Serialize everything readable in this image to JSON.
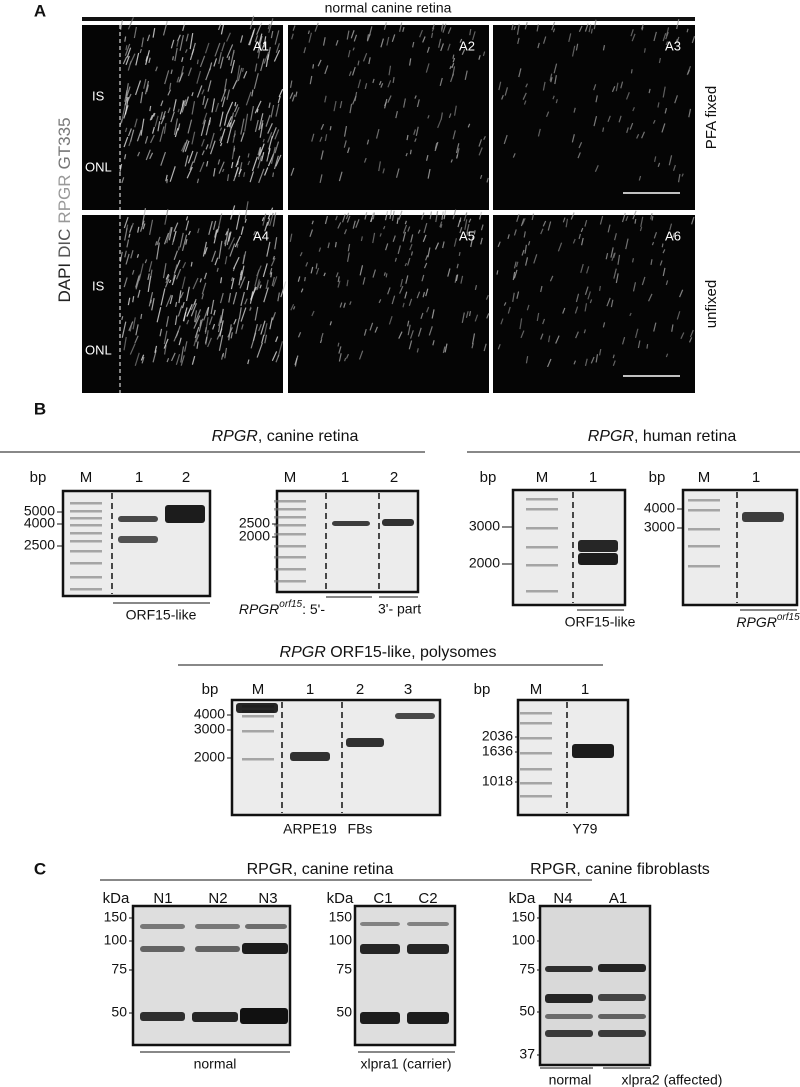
{
  "panel_a": {
    "label": "A",
    "title": "normal canine retina",
    "stain": [
      "DAPI",
      "DIC",
      "RPGR",
      "GT335"
    ],
    "conditions": [
      "PFA fixed",
      "unfixed"
    ],
    "tiles": [
      "A1",
      "A2",
      "A3",
      "A4",
      "A5",
      "A6"
    ],
    "layers": [
      "IS",
      "ONL"
    ]
  },
  "panel_b": {
    "label": "B",
    "canine": {
      "title": {
        "gene": "RPGR",
        "rest": ", canine retina"
      },
      "gels": [
        {
          "unit": "bp",
          "lanes": [
            "M",
            "1",
            "2"
          ],
          "markers": [
            "5000",
            "4000",
            "2500"
          ],
          "captions": [
            "ORF15-like"
          ]
        },
        {
          "lanes": [
            "M",
            "1",
            "2"
          ],
          "markers": [
            "2500",
            "2000"
          ],
          "captions": [
            {
              "gene": "RPGR",
              "sup": "orf15",
              "rest": ": 5'-"
            },
            "3'- part"
          ]
        }
      ]
    },
    "human": {
      "title": {
        "gene": "RPGR",
        "rest": ", human retina"
      },
      "gels": [
        {
          "unit": "bp",
          "lanes": [
            "M",
            "1"
          ],
          "markers": [
            "3000",
            "2000"
          ],
          "captions": [
            "ORF15-like"
          ]
        },
        {
          "unit": "bp",
          "lanes": [
            "M",
            "1"
          ],
          "markers": [
            "4000",
            "3000"
          ],
          "captions": [
            {
              "gene": "RPGR",
              "sup": "orf15",
              "rest": ":"
            }
          ]
        }
      ]
    },
    "polysomes": {
      "title": {
        "gene": "RPGR",
        "rest": " ORF15-like, polysomes"
      },
      "gels": [
        {
          "unit": "bp",
          "lanes": [
            "M",
            "1",
            "2",
            "3"
          ],
          "markers": [
            "4000",
            "3000",
            "2000"
          ],
          "captions": [
            "ARPE19",
            "FBs"
          ]
        },
        {
          "unit": "bp",
          "lanes": [
            "M",
            "1"
          ],
          "markers": [
            "2036",
            "1636",
            "1018"
          ],
          "captions": [
            "Y79"
          ]
        }
      ]
    }
  },
  "panel_c": {
    "label": "C",
    "retina": {
      "title": "RPGR, canine retina",
      "blots": [
        {
          "unit": "kDa",
          "lanes": [
            "N1",
            "N2",
            "N3"
          ],
          "markers": [
            "150",
            "100",
            "75",
            "50"
          ],
          "captions": [
            "normal"
          ]
        },
        {
          "unit": "kDa",
          "lanes": [
            "C1",
            "C2"
          ],
          "markers": [
            "150",
            "100",
            "75",
            "50"
          ],
          "captions": [
            "xlpra1 (carrier)"
          ]
        }
      ]
    },
    "fibroblasts": {
      "title": "RPGR, canine fibroblasts",
      "blots": [
        {
          "unit": "kDa",
          "lanes": [
            "N4",
            "A1"
          ],
          "markers": [
            "150",
            "100",
            "75",
            "50",
            "37"
          ],
          "captions": [
            "normal",
            "xlpra2 (affected)"
          ]
        }
      ]
    }
  }
}
